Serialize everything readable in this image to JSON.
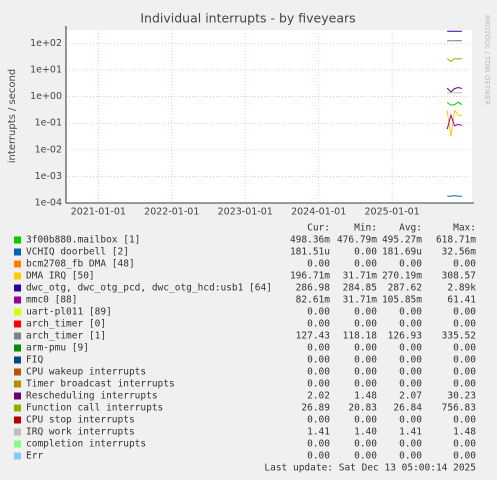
{
  "chart_data": {
    "type": "line",
    "title": "Individual interrupts - by fiveyears",
    "y_label": "interrupts / second",
    "side_label": "RRDTOOL / TOBI OETIKER",
    "log_y": true,
    "grid": true,
    "xlim": [
      2020.56,
      2026.06
    ],
    "xticks": [
      {
        "value": 2021,
        "label": "2021-01-01"
      },
      {
        "value": 2022,
        "label": "2022-01-01"
      },
      {
        "value": 2023,
        "label": "2023-01-01"
      },
      {
        "value": 2024,
        "label": "2024-01-01"
      },
      {
        "value": 2025,
        "label": "2025-01-01"
      }
    ],
    "ylim": [
      0.0001,
      320
    ],
    "yticks": [
      {
        "value": 0.0001,
        "label": "1e-04"
      },
      {
        "value": 0.001,
        "label": "1e-03"
      },
      {
        "value": 0.01,
        "label": "1e-02"
      },
      {
        "value": 0.1,
        "label": "1e-01"
      },
      {
        "value": 1,
        "label": "1e+00"
      },
      {
        "value": 10,
        "label": "1e+01"
      },
      {
        "value": 100,
        "label": "1e+02"
      }
    ],
    "x": [
      2025.75,
      2025.8,
      2025.85,
      2025.9,
      2025.95
    ],
    "columns": [
      "Cur:",
      "Min:",
      "Avg:",
      "Max:"
    ],
    "series": [
      {
        "name": "3f00b880.mailbox [1]",
        "color": "#00cc00",
        "values": [
          0.6,
          0.48,
          0.5,
          0.62,
          0.498
        ],
        "cur": "498.36m",
        "min": "476.79m",
        "avg": "495.27m",
        "max": "618.71m"
      },
      {
        "name": "VCHIQ doorbell [2]",
        "color": "#0066b3",
        "values": [
          0.000182,
          0.00018,
          0.00019,
          0.00018,
          0.000182
        ],
        "cur": "181.51u",
        "min": "0.00",
        "avg": "181.69u",
        "max": "32.56m"
      },
      {
        "name": "bcm2708_fb DMA [48]",
        "color": "#ff8000",
        "values": [
          0,
          0,
          0,
          0,
          0
        ],
        "cur": "0.00",
        "min": "0.00",
        "avg": "0.00",
        "max": "0.00"
      },
      {
        "name": "DMA IRQ [50]",
        "color": "#ffcc00",
        "values": [
          0.3,
          0.032,
          0.3,
          0.2,
          0.197
        ],
        "cur": "196.71m",
        "min": "31.71m",
        "avg": "270.19m",
        "max": "308.57"
      },
      {
        "name": "dwc_otg, dwc_otg_pcd, dwc_otg_hcd:usb1 [64]",
        "color": "#330099",
        "values": [
          288,
          285,
          287,
          289,
          287
        ],
        "cur": "286.98",
        "min": "284.85",
        "avg": "287.62",
        "max": "2.89k"
      },
      {
        "name": "mmc0 [88]",
        "color": "#990099",
        "values": [
          0.06,
          0.2,
          0.08,
          0.09,
          0.083
        ],
        "cur": "82.61m",
        "min": "31.71m",
        "avg": "105.85m",
        "max": "61.41"
      },
      {
        "name": "uart-pl011 [89]",
        "color": "#ccff00",
        "values": [
          0,
          0,
          0,
          0,
          0
        ],
        "cur": "0.00",
        "min": "0.00",
        "avg": "0.00",
        "max": "0.00"
      },
      {
        "name": "arch_timer [0]",
        "color": "#ff0000",
        "values": [
          0,
          0,
          0,
          0,
          0
        ],
        "cur": "0.00",
        "min": "0.00",
        "avg": "0.00",
        "max": "0.00"
      },
      {
        "name": "arch_timer [1]",
        "color": "#808080",
        "values": [
          126,
          127,
          126,
          128,
          127
        ],
        "cur": "127.43",
        "min": "118.18",
        "avg": "126.93",
        "max": "335.52"
      },
      {
        "name": "arm-pmu [9]",
        "color": "#008f00",
        "values": [
          0,
          0,
          0,
          0,
          0
        ],
        "cur": "0.00",
        "min": "0.00",
        "avg": "0.00",
        "max": "0.00"
      },
      {
        "name": "FIQ",
        "color": "#00487d",
        "values": [
          0,
          0,
          0,
          0,
          0
        ],
        "cur": "0.00",
        "min": "0.00",
        "avg": "0.00",
        "max": "0.00"
      },
      {
        "name": "CPU wakeup interrupts",
        "color": "#b35a00",
        "values": [
          0,
          0,
          0,
          0,
          0
        ],
        "cur": "0.00",
        "min": "0.00",
        "avg": "0.00",
        "max": "0.00"
      },
      {
        "name": "Timer broadcast interrupts",
        "color": "#b38f00",
        "values": [
          0,
          0,
          0,
          0,
          0
        ],
        "cur": "0.00",
        "min": "0.00",
        "avg": "0.00",
        "max": "0.00"
      },
      {
        "name": "Rescheduling interrupts",
        "color": "#6b006b",
        "values": [
          2.1,
          1.5,
          2,
          2.2,
          2.02
        ],
        "cur": "2.02",
        "min": "1.48",
        "avg": "2.07",
        "max": "30.23"
      },
      {
        "name": "Function call interrupts",
        "color": "#8fb300",
        "values": [
          27,
          21,
          27,
          26,
          26.89
        ],
        "cur": "26.89",
        "min": "20.83",
        "avg": "26.84",
        "max": "756.83"
      },
      {
        "name": "CPU stop interrupts",
        "color": "#b30000",
        "values": [
          0,
          0,
          0,
          0,
          0
        ],
        "cur": "0.00",
        "min": "0.00",
        "avg": "0.00",
        "max": "0.00"
      },
      {
        "name": "IRQ work interrupts",
        "color": "#bebebe",
        "values": [
          1.41,
          1.4,
          1.41,
          1.42,
          1.41
        ],
        "cur": "1.41",
        "min": "1.40",
        "avg": "1.41",
        "max": "1.48"
      },
      {
        "name": "completion interrupts",
        "color": "#80ff80",
        "values": [
          0,
          0,
          0,
          0,
          0
        ],
        "cur": "0.00",
        "min": "0.00",
        "avg": "0.00",
        "max": "0.00"
      },
      {
        "name": "Err",
        "color": "#80c9ff",
        "values": [
          0,
          0,
          0,
          0,
          0
        ],
        "cur": "0.00",
        "min": "0.00",
        "avg": "0.00",
        "max": "0.00"
      }
    ],
    "last_update": "Last update: Sat Dec 13 05:00:14 2025"
  }
}
